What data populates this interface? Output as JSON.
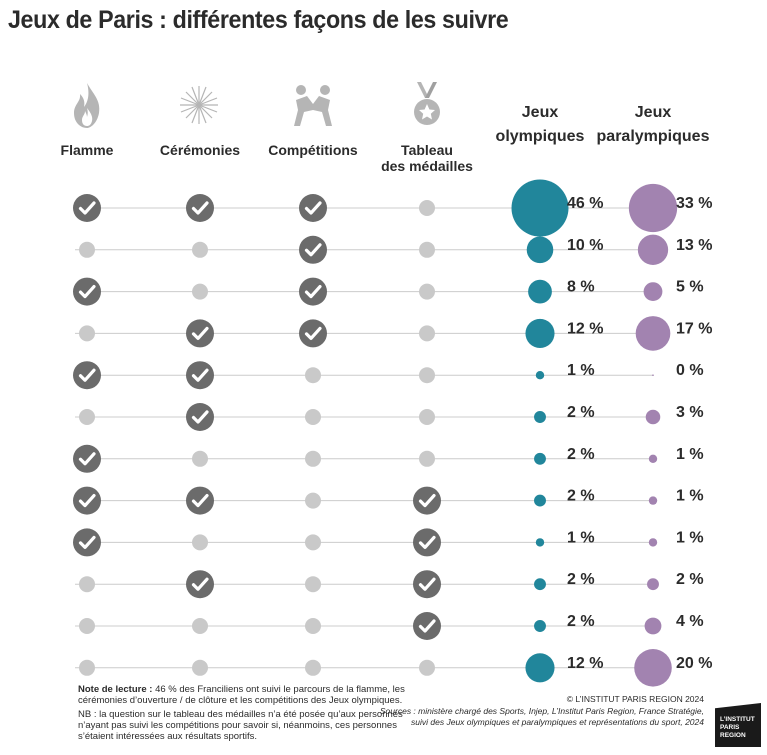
{
  "title": "Jeux de Paris : différentes façons de les suivre",
  "columns": {
    "flamme": "Flamme",
    "ceremonies": "Cérémonies",
    "competitions": "Compétitions",
    "medailles_line1": "Tableau",
    "medailles_line2": "des médailles",
    "olympiques_line1": "Jeux",
    "olympiques_line2": "olympiques",
    "paralympiques_line1": "Jeux",
    "paralympiques_line2": "paralympiques"
  },
  "icons": {
    "flamme": "flame-icon",
    "ceremonies": "fireworks-icon",
    "competitions": "wrestlers-icon",
    "medailles": "medal-icon"
  },
  "colors": {
    "olympic": "#21869b",
    "paralympic": "#a283b0",
    "check_bg": "#6b6b6b",
    "inactive_dot": "#c9c9c9",
    "row_line": "#cccccc"
  },
  "chart_data": {
    "type": "bubble-matrix",
    "criteria": [
      "Flamme",
      "Cérémonies",
      "Compétitions",
      "Tableau des médailles"
    ],
    "rows": [
      {
        "flamme": true,
        "ceremonies": true,
        "competitions": true,
        "medailles": false,
        "olympiques": 46,
        "paralympiques": 33
      },
      {
        "flamme": false,
        "ceremonies": false,
        "competitions": true,
        "medailles": false,
        "olympiques": 10,
        "paralympiques": 13
      },
      {
        "flamme": true,
        "ceremonies": false,
        "competitions": true,
        "medailles": false,
        "olympiques": 8,
        "paralympiques": 5
      },
      {
        "flamme": false,
        "ceremonies": true,
        "competitions": true,
        "medailles": false,
        "olympiques": 12,
        "paralympiques": 17
      },
      {
        "flamme": true,
        "ceremonies": true,
        "competitions": false,
        "medailles": false,
        "olympiques": 1,
        "paralympiques": 0
      },
      {
        "flamme": false,
        "ceremonies": true,
        "competitions": false,
        "medailles": false,
        "olympiques": 2,
        "paralympiques": 3
      },
      {
        "flamme": true,
        "ceremonies": false,
        "competitions": false,
        "medailles": false,
        "olympiques": 2,
        "paralympiques": 1
      },
      {
        "flamme": true,
        "ceremonies": true,
        "competitions": false,
        "medailles": true,
        "olympiques": 2,
        "paralympiques": 1
      },
      {
        "flamme": true,
        "ceremonies": false,
        "competitions": false,
        "medailles": true,
        "olympiques": 1,
        "paralympiques": 1
      },
      {
        "flamme": false,
        "ceremonies": true,
        "competitions": false,
        "medailles": true,
        "olympiques": 2,
        "paralympiques": 2
      },
      {
        "flamme": false,
        "ceremonies": false,
        "competitions": false,
        "medailles": true,
        "olympiques": 2,
        "paralympiques": 4
      },
      {
        "flamme": false,
        "ceremonies": false,
        "competitions": false,
        "medailles": false,
        "olympiques": 12,
        "paralympiques": 20
      }
    ],
    "value_suffix": " %"
  },
  "notes": {
    "lecture_label": "Note de lecture :",
    "lecture_text": " 46 % des Franciliens ont suivi le parcours de la flamme, les cérémonies d’ouverture / de clôture et les compétitions des Jeux olympiques.",
    "nb_text": "NB : la question sur le tableau des médailles n’a été posée qu’aux personnes n’ayant pas suivi les compétitions pour savoir si, néanmoins, ces personnes s’étaient intéressées aux résultats sportifs."
  },
  "credits": {
    "copyright": "© L’INSTITUT PARIS REGION 2024",
    "sources": "Sources : ministère chargé des Sports, Injep, L’Institut Paris Region, France Stratégie, suivi des Jeux olympiques et paralympiques et représentations du sport, 2024"
  },
  "logo": {
    "line1": "L’INSTITUT",
    "line2": "PARIS",
    "line3": "REGION"
  }
}
